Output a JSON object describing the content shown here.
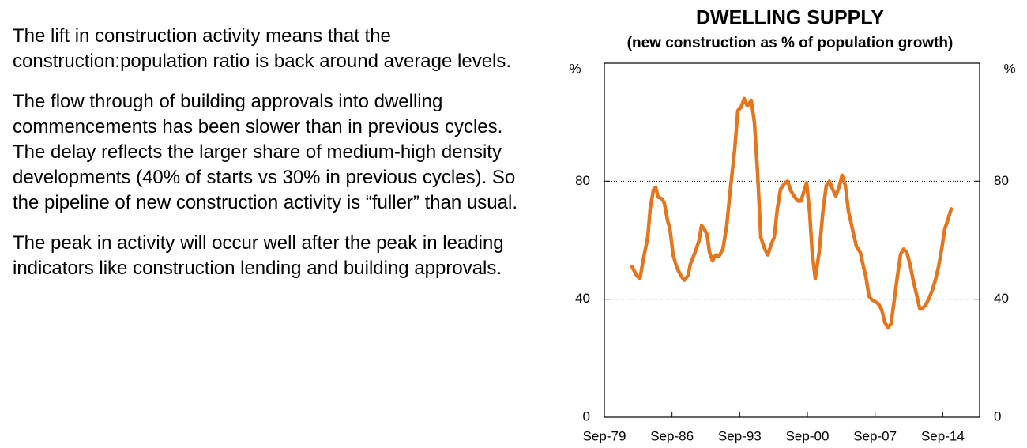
{
  "paragraphs": [
    "The lift in construction activity means that the construction:population ratio is back around average levels.",
    "The flow through of building approvals into dwelling commencements has been slower than in previous cycles.  The delay reflects the larger share of medium-high density developments (40% of starts vs 30% in previous cycles).  So the pipeline of new construction activity is “fuller” than usual.",
    "The peak in activity will occur well after the peak in leading indicators like construction lending and building approvals."
  ],
  "chart_data": {
    "type": "line",
    "title": "DWELLING SUPPLY",
    "subtitle": "(new construction as % of population growth)",
    "y_unit": "%",
    "color": "#e5761d",
    "x": [
      1982.53,
      1983.02,
      1983.35,
      1983.76,
      1984.16,
      1984.41,
      1984.74,
      1984.98,
      1985.23,
      1985.63,
      1985.88,
      1986.21,
      1986.45,
      1986.78,
      1987.19,
      1987.59,
      1987.92,
      1988.33,
      1988.58,
      1989.07,
      1989.47,
      1989.72,
      1989.96,
      1990.29,
      1990.54,
      1990.86,
      1991.19,
      1991.52,
      1991.93,
      1992.33,
      1992.74,
      1993.15,
      1993.48,
      1993.8,
      1994.13,
      1994.46,
      1994.87,
      1995.19,
      1995.52,
      1995.85,
      1996.26,
      1996.58,
      1996.91,
      1997.24,
      1997.56,
      1997.89,
      1998.3,
      1998.62,
      1998.95,
      1999.36,
      1999.69,
      2000.01,
      2000.26,
      2000.59,
      2000.91,
      2001.16,
      2001.48,
      2001.89,
      2002.3,
      2002.63,
      2002.95,
      2003.28,
      2003.61,
      2003.93,
      2004.26,
      2004.59,
      2004.92,
      2005.32,
      2005.73,
      2006.14,
      2006.47,
      2006.71,
      2007.04,
      2007.37,
      2007.69,
      2008.02,
      2008.35,
      2008.67,
      2009.0,
      2009.33,
      2009.65,
      2009.98,
      2010.31,
      2010.63,
      2010.96,
      2011.29,
      2011.61,
      2011.94,
      2012.27,
      2012.6,
      2012.92,
      2013.25,
      2013.58,
      2013.9,
      2014.23,
      2014.56,
      2014.88,
      2015.21,
      2015.54
    ],
    "values": [
      51,
      48,
      47,
      54.5,
      61,
      70.6,
      77,
      78,
      74.6,
      74,
      72.5,
      66.6,
      64,
      55,
      50.5,
      48,
      46.4,
      48,
      52,
      56,
      60,
      65,
      64,
      62,
      56,
      53,
      55,
      54.5,
      57,
      65,
      78.6,
      90.7,
      104,
      105,
      108,
      105.5,
      107.4,
      100,
      82.7,
      61,
      57,
      55,
      58.5,
      61,
      70.6,
      77.3,
      79.2,
      80,
      76.8,
      74.6,
      73.3,
      73.3,
      76,
      79.5,
      69,
      56,
      47,
      56,
      70.6,
      78.6,
      80,
      77.3,
      75,
      77.9,
      82,
      78.6,
      69.8,
      63.9,
      58,
      55.8,
      51,
      47.8,
      41,
      39.7,
      39.2,
      38.4,
      36.5,
      32.2,
      30.3,
      31.7,
      39.7,
      47.8,
      55.3,
      57,
      55.8,
      51.8,
      46.4,
      41.9,
      37,
      37,
      38.1,
      40.3,
      43,
      46.4,
      51,
      57,
      63.9,
      67,
      70.6
    ],
    "xlim": [
      1979.67,
      2018.48
    ],
    "xticks": [
      {
        "value": 1979.67,
        "label": "Sep-79"
      },
      {
        "value": 1986.67,
        "label": "Sep-86"
      },
      {
        "value": 1993.67,
        "label": "Sep-93"
      },
      {
        "value": 2000.67,
        "label": "Sep-00"
      },
      {
        "value": 2007.67,
        "label": "Sep-07"
      },
      {
        "value": 2014.67,
        "label": "Sep-14"
      }
    ],
    "ylim": [
      0,
      120
    ],
    "yticks": [
      0,
      40,
      80
    ],
    "grid": true
  }
}
